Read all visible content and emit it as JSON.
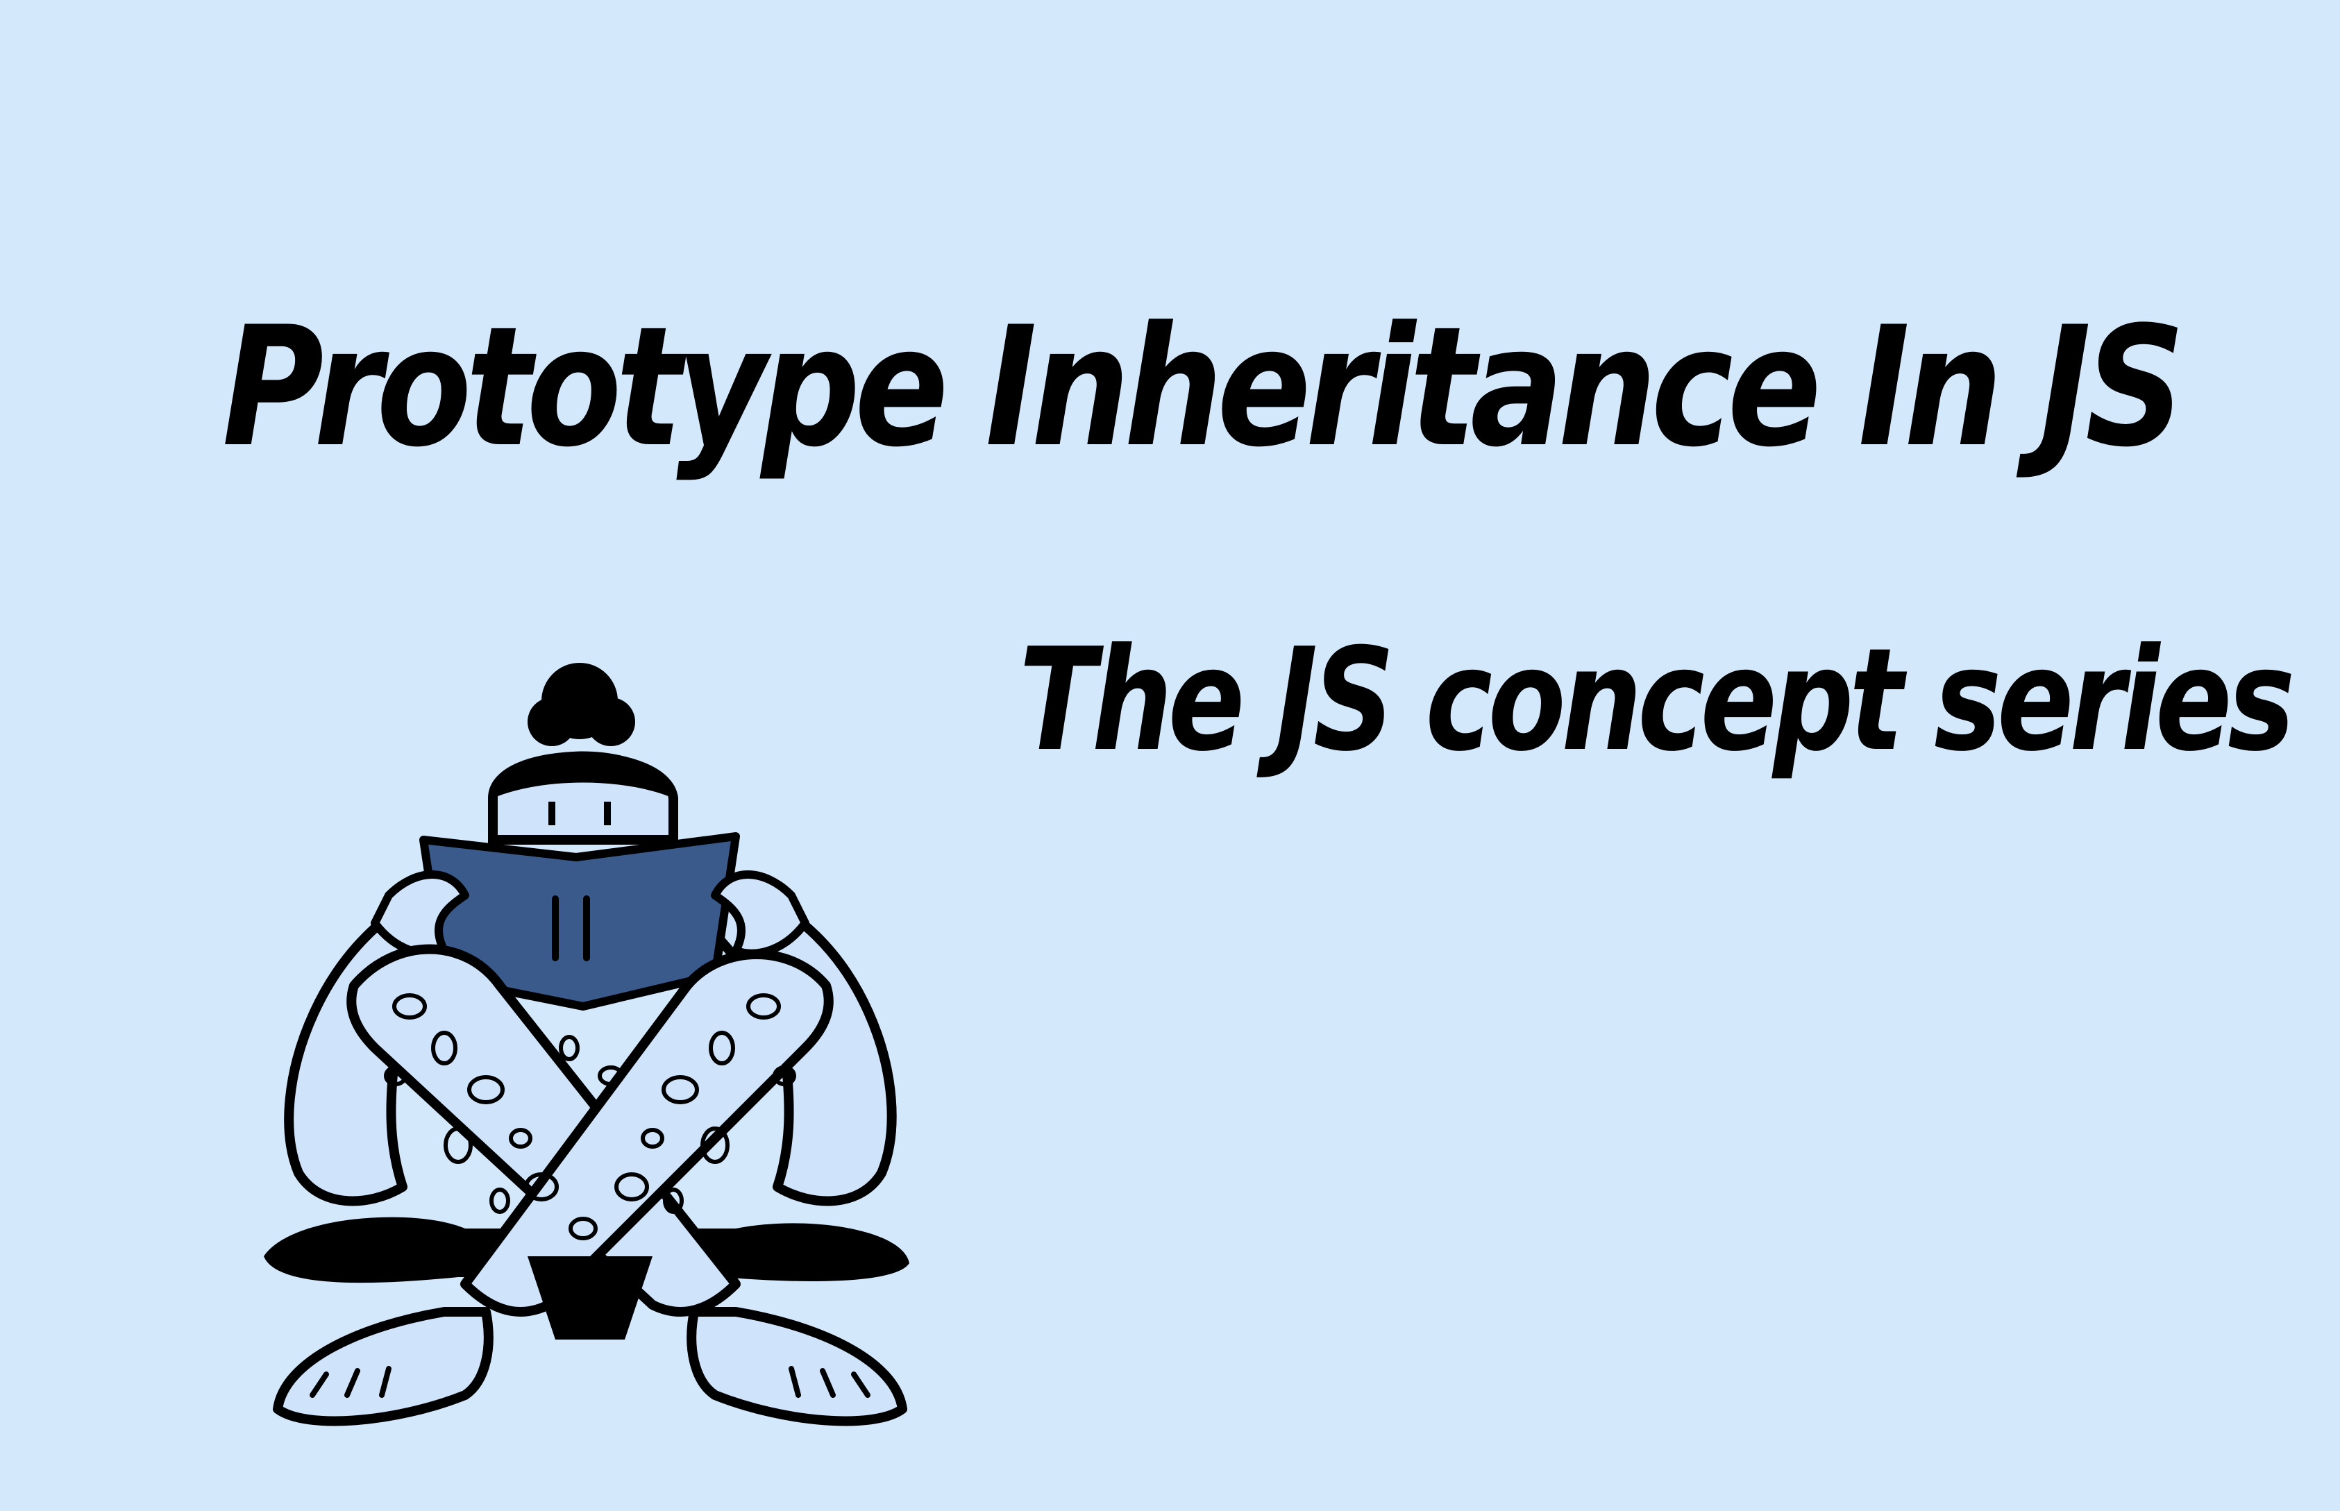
{
  "title": "Prototype Inheritance In JS",
  "subtitle": "The JS concept series",
  "illustration": {
    "subject": "person-reading-book-icon"
  },
  "colors": {
    "background": "#d4e8fc",
    "text": "#000000",
    "book": "#3a5a8c",
    "outline": "#000000",
    "figure_fill": "#cfe3fa"
  }
}
